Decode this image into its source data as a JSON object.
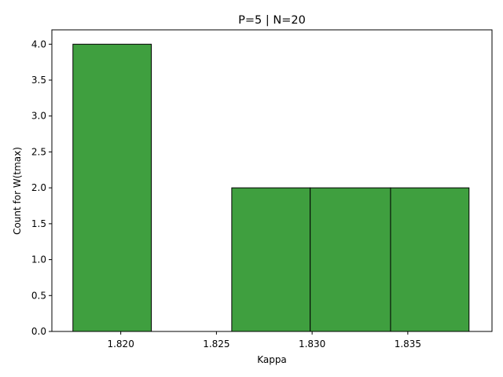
{
  "chart_data": {
    "type": "bar",
    "title": "P=5 | N=20",
    "xlabel": "Kappa",
    "ylabel": "Count for W(tmax)",
    "xlim": [
      1.8164,
      1.8394
    ],
    "ylim": [
      0,
      4.2
    ],
    "bins": [
      {
        "x_start": 1.8175,
        "x_end": 1.8216,
        "value": 4
      },
      {
        "x_start": 1.8216,
        "x_end": 1.8258,
        "value": 0
      },
      {
        "x_start": 1.8258,
        "x_end": 1.8299,
        "value": 2
      },
      {
        "x_start": 1.8299,
        "x_end": 1.8341,
        "value": 2
      },
      {
        "x_start": 1.8341,
        "x_end": 1.8382,
        "value": 2
      }
    ],
    "x_ticks": [
      {
        "value": 1.82,
        "label": "1.820"
      },
      {
        "value": 1.825,
        "label": "1.825"
      },
      {
        "value": 1.83,
        "label": "1.830"
      },
      {
        "value": 1.835,
        "label": "1.835"
      }
    ],
    "y_ticks": [
      {
        "value": 0.0,
        "label": "0.0"
      },
      {
        "value": 0.5,
        "label": "0.5"
      },
      {
        "value": 1.0,
        "label": "1.0"
      },
      {
        "value": 1.5,
        "label": "1.5"
      },
      {
        "value": 2.0,
        "label": "2.0"
      },
      {
        "value": 2.5,
        "label": "2.5"
      },
      {
        "value": 3.0,
        "label": "3.0"
      },
      {
        "value": 3.5,
        "label": "3.5"
      },
      {
        "value": 4.0,
        "label": "4.0"
      }
    ],
    "grid": false,
    "bar_color": "#3f9f3f",
    "bar_edge_color": "#000000"
  }
}
